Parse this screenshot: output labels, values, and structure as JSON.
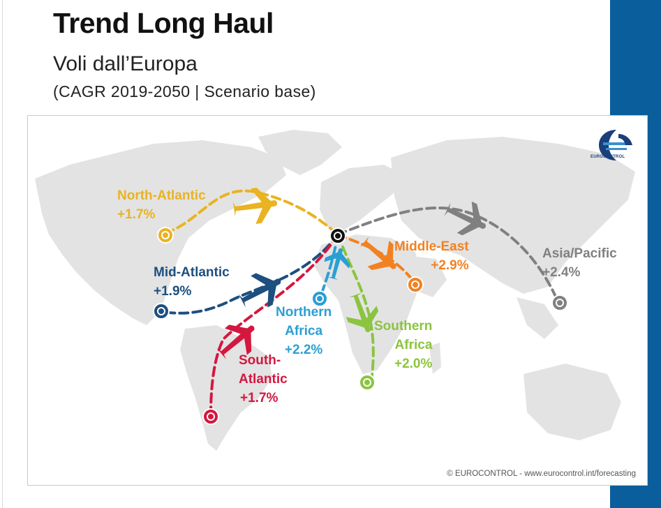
{
  "slide": {
    "title": "Trend Long Haul",
    "subtitle": "Voli dall’Europa",
    "subtitle2": "(CAGR 2019-2050 | Scenario base)"
  },
  "map": {
    "logo_text": "EUROCONTROL",
    "credit": "© EUROCONTROL - www.eurocontrol.int/forecasting",
    "routes": [
      {
        "name": "North-Atlantic",
        "value": "+1.7%",
        "color": "#e9b321"
      },
      {
        "name": "Mid-Atlantic",
        "value": "+1.9%",
        "color": "#1d4f7f"
      },
      {
        "name": "South-Atlantic",
        "value": "+1.7%",
        "color": "#d4173f"
      },
      {
        "name": "Northern Africa",
        "value": "+2.2%",
        "color": "#2b9fd3"
      },
      {
        "name": "Southern Africa",
        "value": "+2.0%",
        "color": "#8cc43f"
      },
      {
        "name": "Middle-East",
        "value": "+2.9%",
        "color": "#f28121"
      },
      {
        "name": "Asia/Pacific",
        "value": "+2.4%",
        "color": "#808080"
      }
    ],
    "label_lines": {
      "south_atlantic_1": "South-",
      "south_atlantic_2": "Atlantic",
      "northern_africa_1": "Northern",
      "northern_africa_2": "Africa",
      "southern_africa_1": "Southern",
      "southern_africa_2": "Africa"
    }
  }
}
